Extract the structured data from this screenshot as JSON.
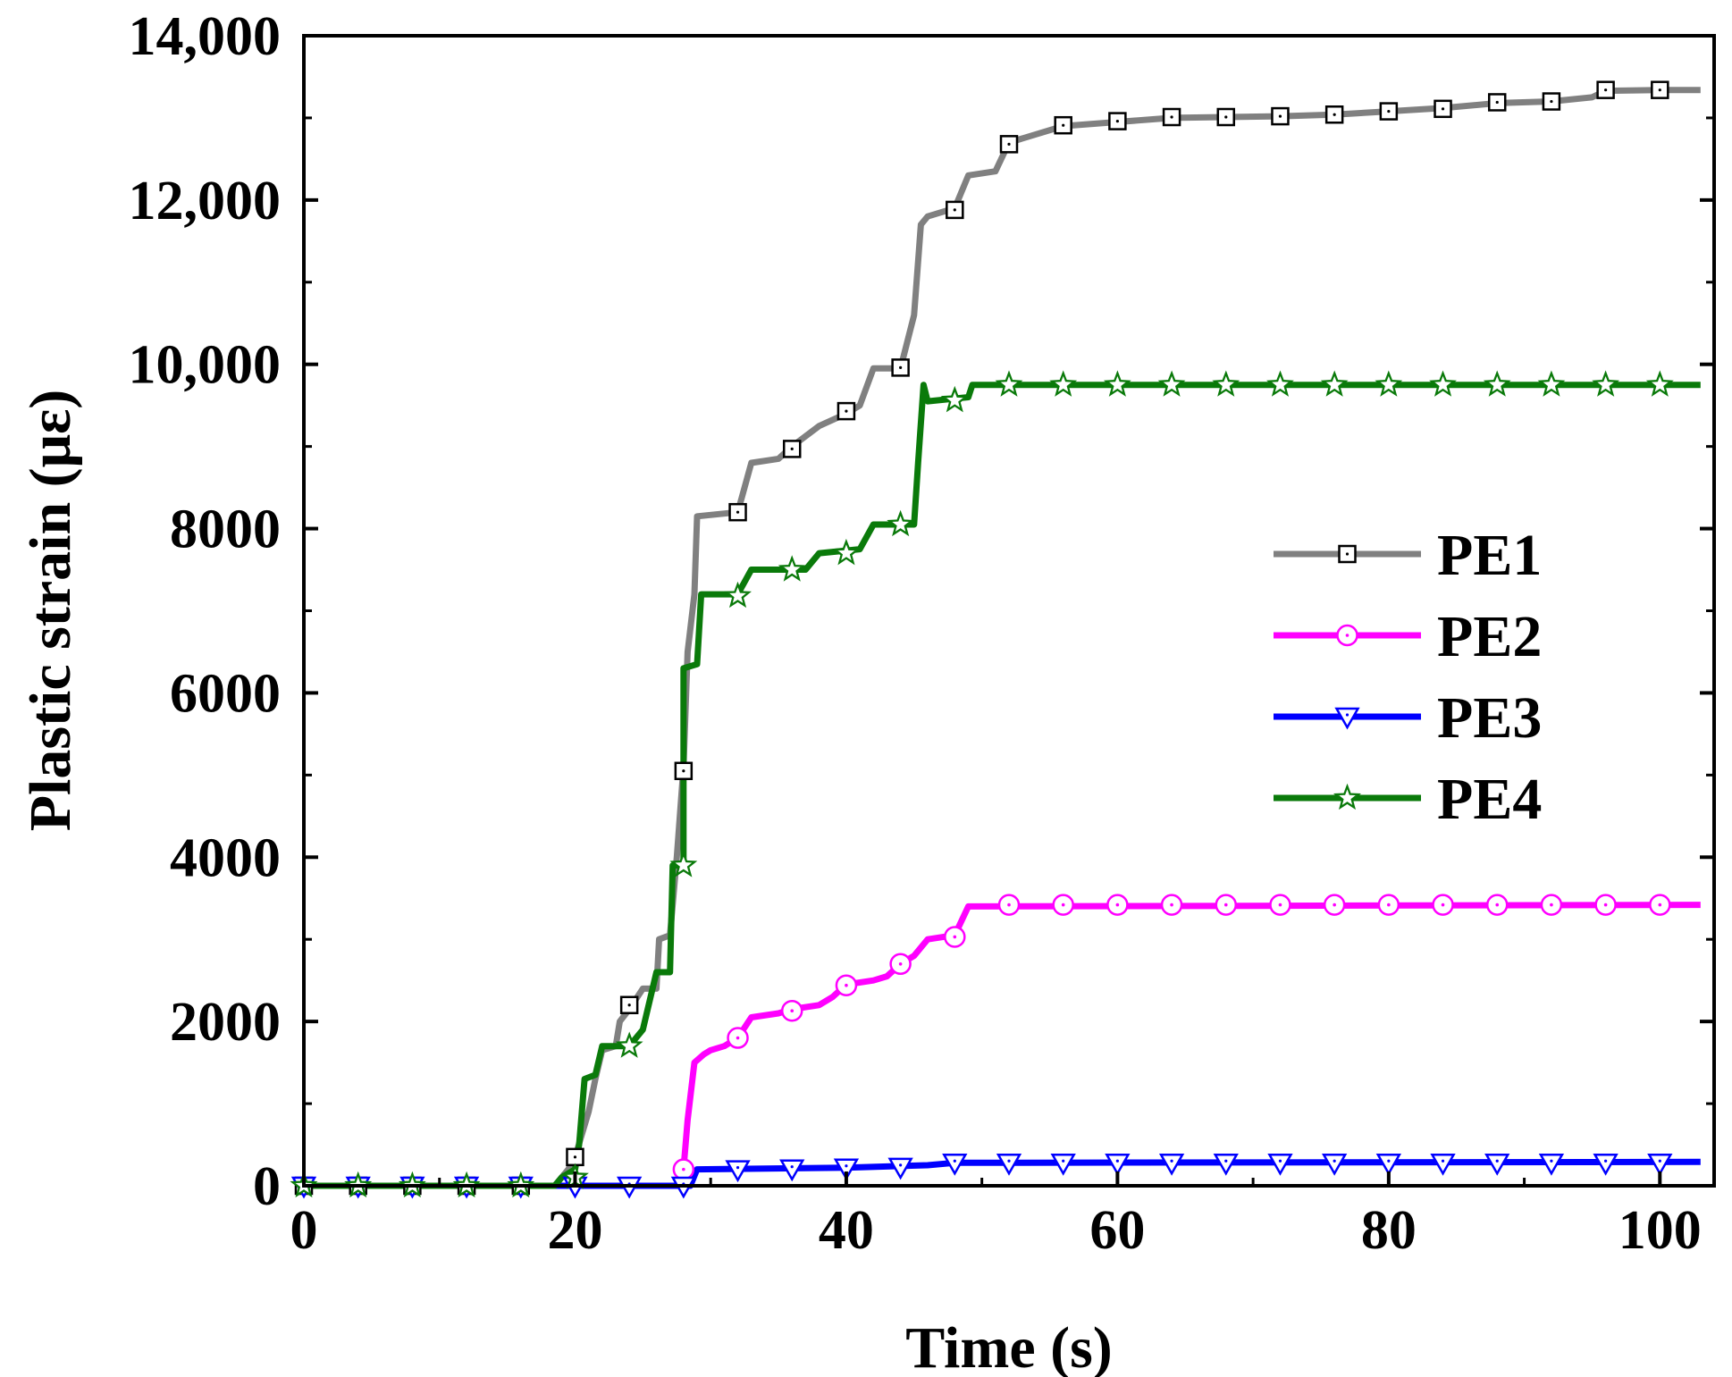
{
  "chart_data": {
    "type": "line",
    "title": "",
    "xlabel": "Time (s)",
    "ylabel": "Plastic strain (με)",
    "xlim": [
      0,
      104
    ],
    "ylim": [
      0,
      14000
    ],
    "xticks": [
      0,
      20,
      40,
      60,
      80,
      100
    ],
    "xtick_labels": [
      "0",
      "20",
      "40",
      "60",
      "80",
      "100"
    ],
    "yticks": [
      0,
      2000,
      4000,
      6000,
      8000,
      10000,
      12000,
      14000
    ],
    "ytick_labels": [
      "0",
      "2000",
      "4000",
      "6000",
      "8000",
      "10,000",
      "12,000",
      "14,000"
    ],
    "legend_position": "center-right",
    "series": [
      {
        "name": "PE1",
        "color": "#808080",
        "marker": "square",
        "points": [
          [
            0,
            0
          ],
          [
            18.5,
            0
          ],
          [
            19,
            100
          ],
          [
            19.5,
            200
          ],
          [
            20,
            350
          ],
          [
            21,
            900
          ],
          [
            21.5,
            1300
          ],
          [
            22,
            1650
          ],
          [
            23,
            1700
          ],
          [
            23.3,
            2000
          ],
          [
            24,
            2150
          ],
          [
            25,
            2400
          ],
          [
            26,
            2400
          ],
          [
            26.2,
            3000
          ],
          [
            27,
            3050
          ],
          [
            27.5,
            4000
          ],
          [
            28,
            5100
          ],
          [
            28.3,
            6500
          ],
          [
            28.8,
            7200
          ],
          [
            29,
            8150
          ],
          [
            32,
            8200
          ],
          [
            33,
            8800
          ],
          [
            35,
            8850
          ],
          [
            36,
            9000
          ],
          [
            38,
            9250
          ],
          [
            40,
            9400
          ],
          [
            41,
            9500
          ],
          [
            42,
            9950
          ],
          [
            44,
            9950
          ],
          [
            45,
            10600
          ],
          [
            45.5,
            11700
          ],
          [
            46,
            11800
          ],
          [
            48,
            11900
          ],
          [
            49,
            12300
          ],
          [
            51,
            12350
          ],
          [
            52,
            12700
          ],
          [
            54,
            12800
          ],
          [
            56,
            12900
          ],
          [
            60,
            12950
          ],
          [
            64,
            13000
          ],
          [
            72,
            13020
          ],
          [
            76,
            13040
          ],
          [
            80,
            13080
          ],
          [
            84,
            13120
          ],
          [
            88,
            13180
          ],
          [
            92,
            13200
          ],
          [
            95,
            13250
          ],
          [
            96,
            13330
          ],
          [
            100,
            13340
          ],
          [
            103,
            13340
          ]
        ],
        "markers": [
          [
            0,
            0
          ],
          [
            4,
            0
          ],
          [
            8,
            0
          ],
          [
            12,
            0
          ],
          [
            16,
            0
          ],
          [
            20,
            350
          ],
          [
            24,
            2200
          ],
          [
            28,
            5050
          ],
          [
            32,
            8200
          ],
          [
            36,
            8970
          ],
          [
            40,
            9430
          ],
          [
            44,
            9960
          ],
          [
            48,
            11880
          ],
          [
            52,
            12680
          ],
          [
            56,
            12910
          ],
          [
            60,
            12960
          ],
          [
            64,
            13010
          ],
          [
            68,
            13010
          ],
          [
            72,
            13020
          ],
          [
            76,
            13040
          ],
          [
            80,
            13080
          ],
          [
            84,
            13110
          ],
          [
            88,
            13190
          ],
          [
            92,
            13200
          ],
          [
            96,
            13340
          ],
          [
            100,
            13340
          ]
        ]
      },
      {
        "name": "PE2",
        "color": "#ff00ff",
        "marker": "circle",
        "points": [
          [
            0,
            0
          ],
          [
            27.5,
            0
          ],
          [
            28,
            200
          ],
          [
            28.3,
            800
          ],
          [
            28.8,
            1500
          ],
          [
            29.5,
            1600
          ],
          [
            30,
            1650
          ],
          [
            31,
            1700
          ],
          [
            32,
            1800
          ],
          [
            33,
            2050
          ],
          [
            35,
            2100
          ],
          [
            36,
            2150
          ],
          [
            38,
            2200
          ],
          [
            39,
            2300
          ],
          [
            40,
            2450
          ],
          [
            42,
            2500
          ],
          [
            43,
            2550
          ],
          [
            44,
            2700
          ],
          [
            45,
            2800
          ],
          [
            46,
            3000
          ],
          [
            48,
            3050
          ],
          [
            49,
            3400
          ],
          [
            103,
            3420
          ]
        ],
        "markers": [
          [
            28,
            200
          ],
          [
            32,
            1800
          ],
          [
            36,
            2130
          ],
          [
            40,
            2440
          ],
          [
            44,
            2700
          ],
          [
            48,
            3030
          ],
          [
            52,
            3420
          ],
          [
            56,
            3420
          ],
          [
            60,
            3420
          ],
          [
            64,
            3420
          ],
          [
            68,
            3420
          ],
          [
            72,
            3420
          ],
          [
            76,
            3420
          ],
          [
            80,
            3420
          ],
          [
            84,
            3420
          ],
          [
            88,
            3420
          ],
          [
            92,
            3420
          ],
          [
            96,
            3420
          ],
          [
            100,
            3420
          ]
        ]
      },
      {
        "name": "PE3",
        "color": "#0000ff",
        "marker": "triangle-down",
        "points": [
          [
            0,
            0
          ],
          [
            28.5,
            0
          ],
          [
            29,
            200
          ],
          [
            40,
            220
          ],
          [
            46,
            250
          ],
          [
            48,
            280
          ],
          [
            103,
            290
          ]
        ],
        "markers": [
          [
            0,
            0
          ],
          [
            4,
            0
          ],
          [
            8,
            0
          ],
          [
            12,
            0
          ],
          [
            16,
            0
          ],
          [
            20,
            0
          ],
          [
            24,
            0
          ],
          [
            28,
            0
          ],
          [
            32,
            200
          ],
          [
            36,
            210
          ],
          [
            40,
            220
          ],
          [
            44,
            230
          ],
          [
            48,
            280
          ],
          [
            52,
            280
          ],
          [
            56,
            280
          ],
          [
            60,
            280
          ],
          [
            64,
            280
          ],
          [
            68,
            280
          ],
          [
            72,
            280
          ],
          [
            76,
            280
          ],
          [
            80,
            280
          ],
          [
            84,
            280
          ],
          [
            88,
            280
          ],
          [
            92,
            280
          ],
          [
            96,
            280
          ],
          [
            100,
            280
          ]
        ]
      },
      {
        "name": "PE4",
        "color": "#0a7a0a",
        "marker": "star",
        "points": [
          [
            0,
            0
          ],
          [
            18.5,
            0
          ],
          [
            19,
            100
          ],
          [
            19.5,
            150
          ],
          [
            20,
            200
          ],
          [
            20.3,
            500
          ],
          [
            20.7,
            1300
          ],
          [
            21.5,
            1350
          ],
          [
            22,
            1700
          ],
          [
            24,
            1700
          ],
          [
            25,
            1900
          ],
          [
            26,
            2600
          ],
          [
            27,
            2600
          ],
          [
            27.2,
            3900
          ],
          [
            28,
            3900
          ],
          [
            28,
            6300
          ],
          [
            29,
            6350
          ],
          [
            29.3,
            7200
          ],
          [
            32,
            7200
          ],
          [
            33,
            7500
          ],
          [
            37,
            7500
          ],
          [
            38,
            7700
          ],
          [
            41,
            7750
          ],
          [
            42,
            8050
          ],
          [
            45,
            8050
          ],
          [
            45.3,
            8800
          ],
          [
            45.7,
            9750
          ],
          [
            46,
            9550
          ],
          [
            49,
            9600
          ],
          [
            49.3,
            9750
          ],
          [
            103,
            9750
          ]
        ],
        "markers": [
          [
            0,
            0
          ],
          [
            4,
            0
          ],
          [
            8,
            0
          ],
          [
            12,
            0
          ],
          [
            16,
            0
          ],
          [
            20,
            100
          ],
          [
            24,
            1700
          ],
          [
            28,
            3900
          ],
          [
            32,
            7180
          ],
          [
            36,
            7500
          ],
          [
            40,
            7700
          ],
          [
            44,
            8050
          ],
          [
            48,
            9560
          ],
          [
            52,
            9750
          ],
          [
            56,
            9750
          ],
          [
            60,
            9750
          ],
          [
            64,
            9750
          ],
          [
            68,
            9750
          ],
          [
            72,
            9750
          ],
          [
            76,
            9750
          ],
          [
            80,
            9750
          ],
          [
            84,
            9750
          ],
          [
            88,
            9750
          ],
          [
            92,
            9750
          ],
          [
            96,
            9750
          ],
          [
            100,
            9750
          ]
        ]
      }
    ]
  }
}
